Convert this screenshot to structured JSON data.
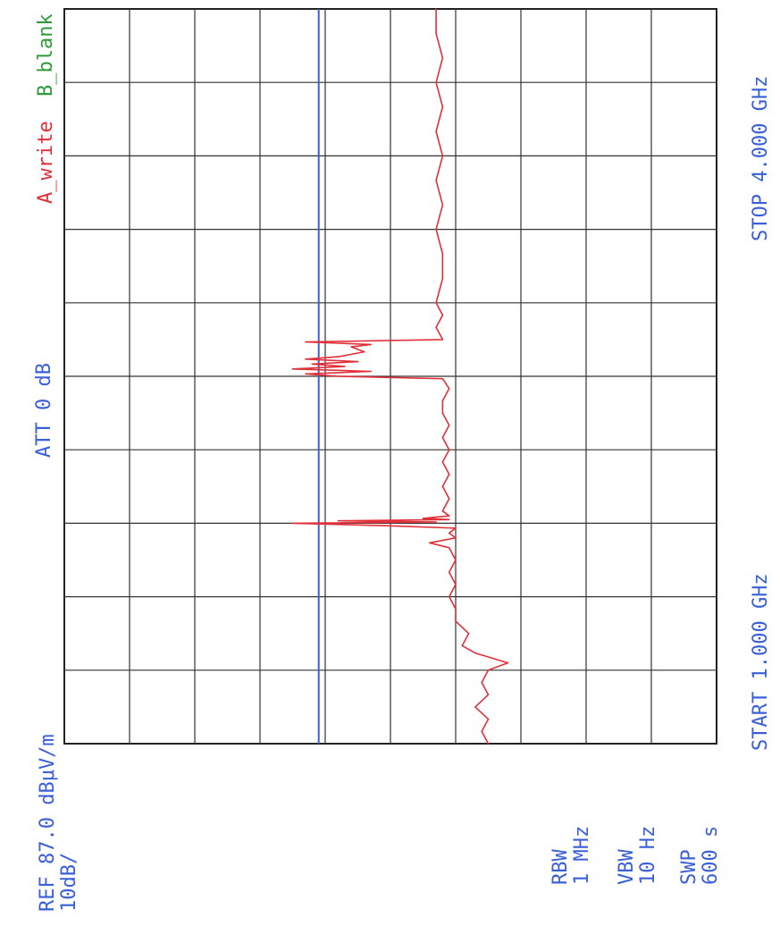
{
  "chart_data": {
    "type": "line",
    "orientation": "rotated-90-ccw",
    "x_axis": {
      "start_label": "START 1.000 GHz",
      "stop_label": "STOP 4.000 GHz",
      "range": [
        1.0,
        4.0
      ],
      "unit": "GHz",
      "divisions": 10
    },
    "y_axis": {
      "ref_label": "REF 87.0 dBμV/m",
      "scale_label": "10dB/",
      "ref_level": 87.0,
      "db_per_div": 10,
      "divisions": 10,
      "range": [
        -13,
        87
      ],
      "unit": "dBμV/m"
    },
    "atten_label": "ATT 0 dB",
    "trace_a_label": "A_write",
    "trace_b_label": "B_blank",
    "rbw_label": "RBW",
    "rbw_value": "1 MHz",
    "vbw_label": "VBW",
    "vbw_value": "10 Hz",
    "swp_label": "SWP",
    "swp_value": "600 s",
    "limit_line": {
      "level": 48
    },
    "series": [
      {
        "color": "#e0303a",
        "points": [
          [
            1.0,
            22
          ],
          [
            1.05,
            23
          ],
          [
            1.1,
            22
          ],
          [
            1.15,
            24
          ],
          [
            1.2,
            22
          ],
          [
            1.25,
            23
          ],
          [
            1.3,
            22
          ],
          [
            1.33,
            19
          ],
          [
            1.37,
            24
          ],
          [
            1.4,
            26
          ],
          [
            1.45,
            25
          ],
          [
            1.5,
            27
          ],
          [
            1.55,
            27
          ],
          [
            1.6,
            28
          ],
          [
            1.65,
            27
          ],
          [
            1.7,
            28
          ],
          [
            1.75,
            27
          ],
          [
            1.8,
            28
          ],
          [
            1.82,
            31
          ],
          [
            1.84,
            27
          ],
          [
            1.86,
            28
          ],
          [
            1.88,
            27
          ],
          [
            1.89,
            38
          ],
          [
            1.9,
            52
          ],
          [
            1.905,
            30
          ],
          [
            1.91,
            45
          ],
          [
            1.915,
            28
          ],
          [
            1.92,
            32
          ],
          [
            1.93,
            28
          ],
          [
            1.95,
            29
          ],
          [
            2.0,
            28
          ],
          [
            2.05,
            29
          ],
          [
            2.1,
            28
          ],
          [
            2.15,
            29
          ],
          [
            2.2,
            28
          ],
          [
            2.25,
            29
          ],
          [
            2.3,
            28
          ],
          [
            2.35,
            29
          ],
          [
            2.4,
            29
          ],
          [
            2.45,
            28
          ],
          [
            2.49,
            29
          ],
          [
            2.5,
            45
          ],
          [
            2.51,
            50
          ],
          [
            2.52,
            40
          ],
          [
            2.53,
            52
          ],
          [
            2.54,
            44
          ],
          [
            2.55,
            49
          ],
          [
            2.56,
            42
          ],
          [
            2.57,
            50
          ],
          [
            2.58,
            45
          ],
          [
            2.6,
            41
          ],
          [
            2.62,
            43
          ],
          [
            2.63,
            40
          ],
          [
            2.64,
            50
          ],
          [
            2.65,
            29
          ],
          [
            2.7,
            30
          ],
          [
            2.75,
            29
          ],
          [
            2.8,
            30
          ],
          [
            2.9,
            29
          ],
          [
            3.0,
            29
          ],
          [
            3.1,
            30
          ],
          [
            3.2,
            29
          ],
          [
            3.3,
            30
          ],
          [
            3.4,
            29
          ],
          [
            3.5,
            30
          ],
          [
            3.6,
            29
          ],
          [
            3.7,
            30
          ],
          [
            3.8,
            29
          ],
          [
            3.9,
            30
          ],
          [
            4.0,
            30
          ]
        ]
      }
    ]
  }
}
